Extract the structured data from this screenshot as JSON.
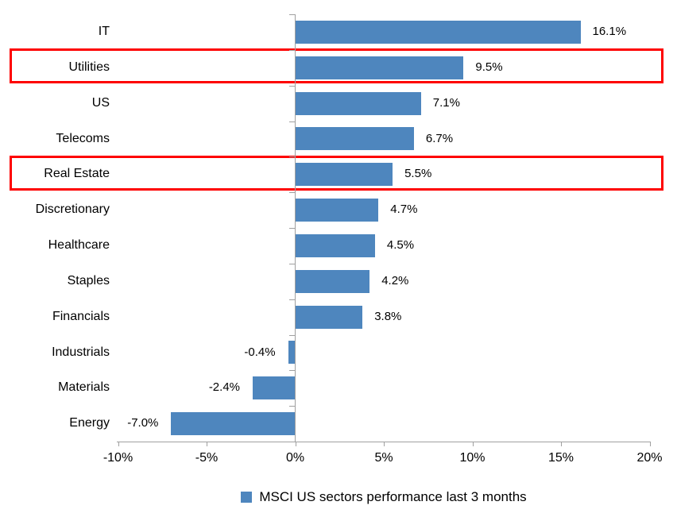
{
  "chart_data": {
    "type": "bar",
    "orientation": "horizontal",
    "title": "",
    "xlabel": "",
    "ylabel": "",
    "categories": [
      "IT",
      "Utilities",
      "US",
      "Telecoms",
      "Real Estate",
      "Discretionary",
      "Healthcare",
      "Staples",
      "Financials",
      "Industrials",
      "Materials",
      "Energy"
    ],
    "values": [
      16.1,
      9.5,
      7.1,
      6.7,
      5.5,
      4.7,
      4.5,
      4.2,
      3.8,
      -0.4,
      -2.4,
      -7.0
    ],
    "value_labels": [
      "16.1%",
      "9.5%",
      "7.1%",
      "6.7%",
      "5.5%",
      "4.7%",
      "4.5%",
      "4.2%",
      "3.8%",
      "-0.4%",
      "-2.4%",
      "-7.0%"
    ],
    "highlighted_indices": [
      1,
      4
    ],
    "highlighted_categories": [
      "Utilities",
      "Real Estate"
    ],
    "x_axis": {
      "min": -10,
      "max": 20,
      "tick_values": [
        -10,
        -5,
        0,
        5,
        10,
        15,
        20
      ],
      "tick_labels": [
        "-10%",
        "-5%",
        "0%",
        "5%",
        "10%",
        "15%",
        "20%"
      ]
    },
    "grid": false,
    "legend": {
      "label": "MSCI US sectors performance last 3 months",
      "position": "bottom",
      "marker": "square"
    },
    "colors": {
      "bar": "#4e86be",
      "highlight_box": "#fe0000",
      "axis": "#a0a0a0",
      "text": "#000000",
      "background": "#ffffff"
    }
  }
}
